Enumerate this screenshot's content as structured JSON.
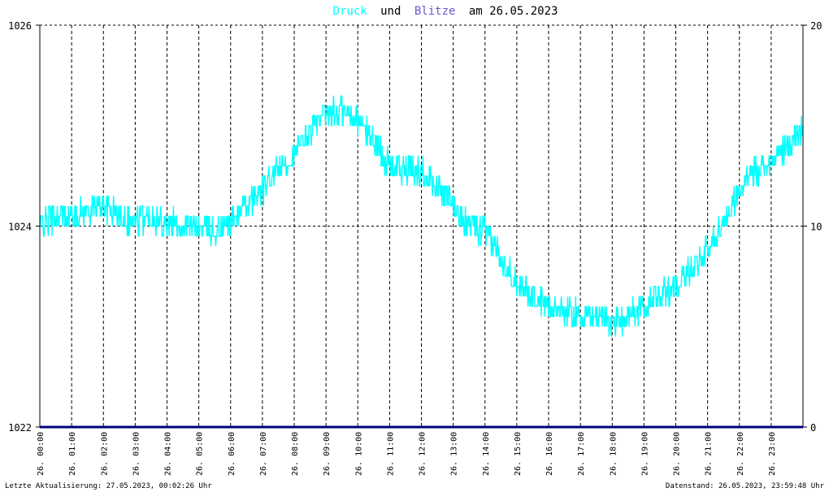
{
  "title": {
    "druck": "Druck",
    "und": "und",
    "blitze": "Blitze",
    "am": "am 26.05.2023"
  },
  "colors": {
    "druck": "#00ffff",
    "blitze": "#6a5acd",
    "title_text": "#000000",
    "grid": "#000000",
    "baseline": "#000080",
    "background": "#ffffff"
  },
  "footer": {
    "left": "Letzte Aktualisierung: 27.05.2023, 00:02:26 Uhr",
    "right": "Datenstand: 26.05.2023, 23:59:48 Uhr"
  },
  "chart_data": {
    "type": "line",
    "title": "Druck und Blitze am 26.05.2023",
    "x_tick_labels": [
      "26. 00:00",
      "26. 01:00",
      "26. 02:00",
      "26. 03:00",
      "26. 04:00",
      "26. 05:00",
      "26. 06:00",
      "26. 07:00",
      "26. 08:00",
      "26. 09:00",
      "26. 10:00",
      "26. 11:00",
      "26. 12:00",
      "26. 13:00",
      "26. 14:00",
      "26. 15:00",
      "26. 16:00",
      "26. 17:00",
      "26. 18:00",
      "26. 19:00",
      "26. 20:00",
      "26. 21:00",
      "26. 22:00",
      "26. 23:00"
    ],
    "y_left": {
      "ticks": [
        "1022",
        "1024",
        "1026"
      ],
      "range": [
        1022,
        1026
      ]
    },
    "y_right": {
      "ticks": [
        "0",
        "10",
        "20"
      ],
      "range": [
        0,
        20
      ]
    },
    "grid": true,
    "series": [
      {
        "name": "Druck",
        "axis": "left",
        "x_hours": [
          0,
          0.5,
          1,
          1.5,
          2,
          2.5,
          3,
          3.5,
          4,
          4.5,
          5,
          5.5,
          6,
          6.5,
          7,
          7.5,
          8,
          8.5,
          9,
          9.5,
          10,
          10.5,
          11,
          11.5,
          12,
          12.5,
          13,
          13.5,
          14,
          14.5,
          15,
          15.5,
          16,
          16.5,
          17,
          17.5,
          18,
          18.5,
          19,
          19.5,
          20,
          20.5,
          21,
          21.5,
          22,
          22.5,
          23,
          23.5,
          24
        ],
        "values": [
          1024.0,
          1024.1,
          1024.1,
          1024.15,
          1024.2,
          1024.1,
          1024.05,
          1024.1,
          1024.05,
          1024.0,
          1024.0,
          1023.95,
          1024.05,
          1024.2,
          1024.35,
          1024.55,
          1024.7,
          1024.95,
          1025.1,
          1025.15,
          1025.05,
          1024.85,
          1024.6,
          1024.55,
          1024.55,
          1024.4,
          1024.2,
          1024.0,
          1023.95,
          1023.7,
          1023.45,
          1023.3,
          1023.2,
          1023.15,
          1023.1,
          1023.1,
          1023.05,
          1023.1,
          1023.2,
          1023.3,
          1023.4,
          1023.6,
          1023.75,
          1024.05,
          1024.35,
          1024.55,
          1024.65,
          1024.8,
          1024.95
        ],
        "fluctuation": 0.14
      },
      {
        "name": "Blitze",
        "axis": "right",
        "x_hours": [
          0,
          24
        ],
        "values": [
          0,
          0
        ]
      }
    ]
  }
}
